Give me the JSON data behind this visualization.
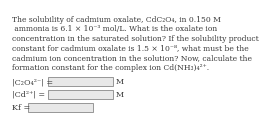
{
  "background_color": "#ffffff",
  "paragraph": "The solubility of cadmium oxalate, CdC₂O₄, in 0.150 M\n ammonia is 6.1 × 10⁻³ mol/L. What is the oxalate ion\nconcentration in the saturated solution? If the solubility product\nconstant for cadmium oxalate is 1.5 × 10⁻⁸, what must be the\ncadmium ion concentration in the solution? Now, calculate the\nformation constant for the complex ion Cd(NH₃)₄²⁺.",
  "label1": "|C₂O₄²⁻| =",
  "label2": "|Cd²⁺| =",
  "label3": "Kf =",
  "unit1": "M",
  "unit2": "M",
  "fontsize_main": 5.5,
  "fontsize_label": 5.8,
  "text_color": "#3a3a3a",
  "box_color": "#e8e8e8",
  "box_edge": "#888888"
}
